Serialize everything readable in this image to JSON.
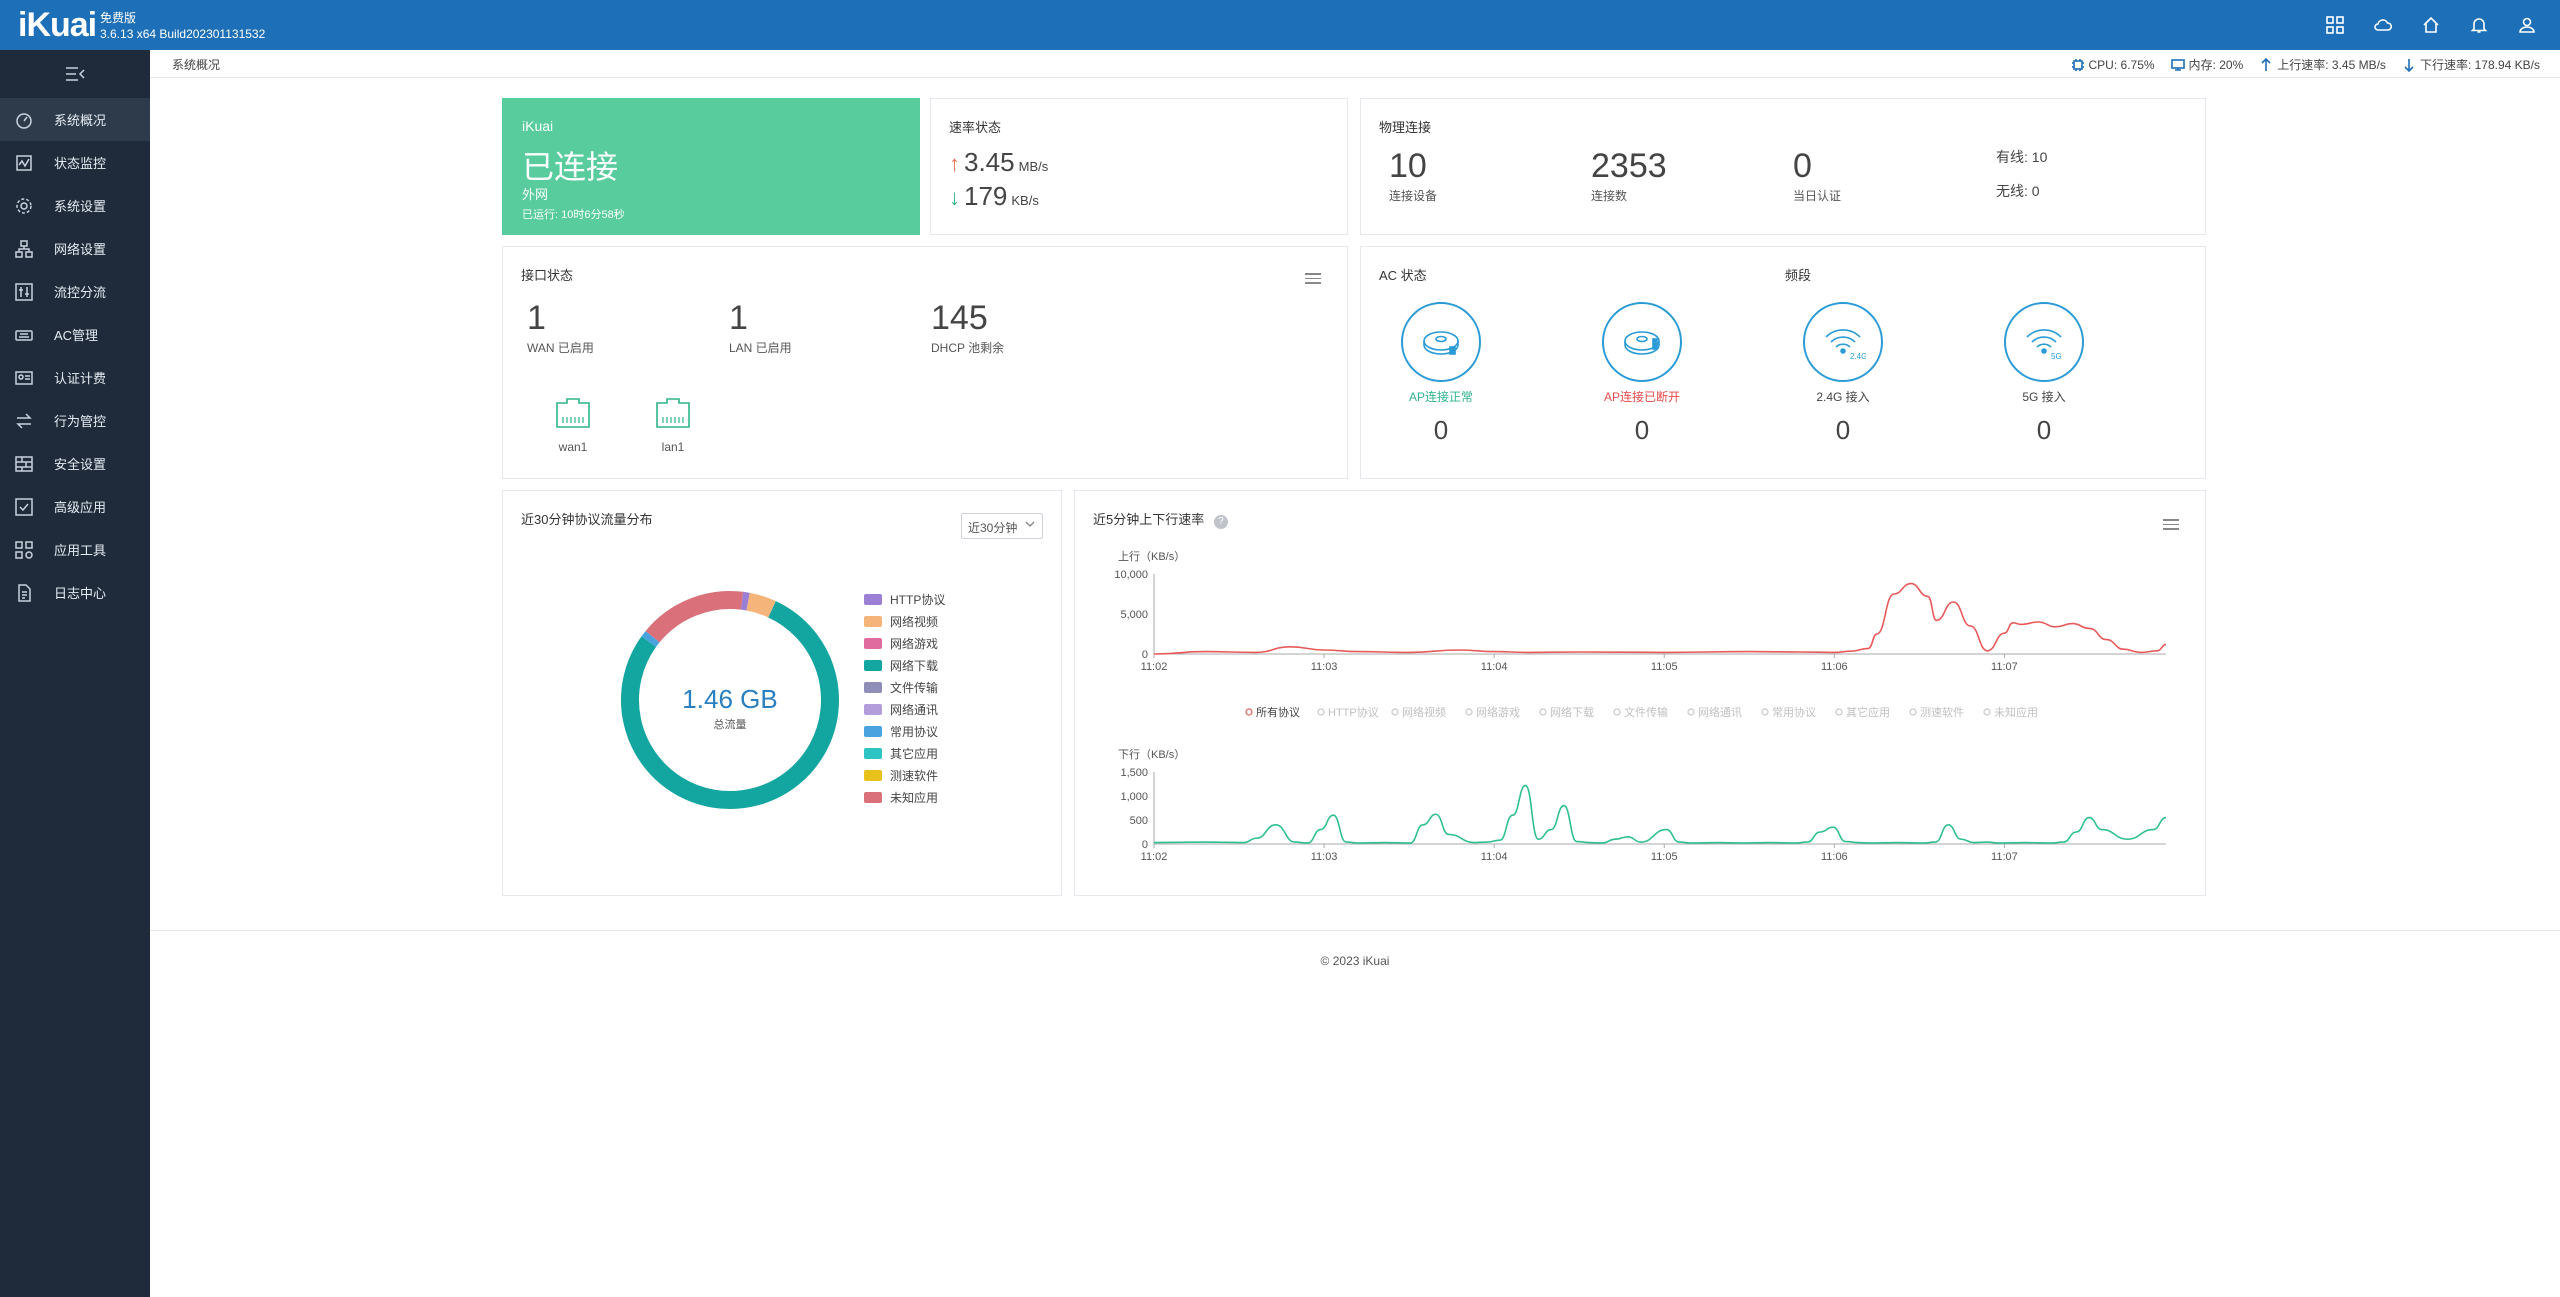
{
  "header": {
    "logo": "iKuai",
    "edition": "免费版",
    "build": "3.6.13 x64 Build202301131532",
    "icons": [
      "apps-icon",
      "cloud-icon",
      "home-icon",
      "bell-icon",
      "user-icon"
    ]
  },
  "sidebar": {
    "items": [
      {
        "label": "系统概况",
        "icon": "dashboard-icon"
      },
      {
        "label": "状态监控",
        "icon": "monitor-icon"
      },
      {
        "label": "系统设置",
        "icon": "gear-icon"
      },
      {
        "label": "网络设置",
        "icon": "network-icon"
      },
      {
        "label": "流控分流",
        "icon": "sliders-icon"
      },
      {
        "label": "AC管理",
        "icon": "router-icon"
      },
      {
        "label": "认证计费",
        "icon": "id-card-icon"
      },
      {
        "label": "行为管控",
        "icon": "arrows-icon"
      },
      {
        "label": "安全设置",
        "icon": "firewall-icon"
      },
      {
        "label": "高级应用",
        "icon": "check-box-icon"
      },
      {
        "label": "应用工具",
        "icon": "tools-icon"
      },
      {
        "label": "日志中心",
        "icon": "log-icon"
      }
    ]
  },
  "statusbar": {
    "breadcrumb": "系统概况",
    "cpu": "CPU: 6.75%",
    "mem": "内存: 20%",
    "up": "上行速率: 3.45 MB/s",
    "down": "下行速率: 178.94 KB/s"
  },
  "wan": {
    "brand": "iKuai",
    "status": "已连接",
    "type": "外网",
    "uptime": "已运行: 10时6分58秒"
  },
  "rate": {
    "title": "速率状态",
    "up_value": "3.45",
    "up_unit": "MB/s",
    "down_value": "179",
    "down_unit": "KB/s",
    "up_color": "#f07356",
    "down_color": "#2fb38a"
  },
  "physical": {
    "title": "物理连接",
    "devices": "10",
    "devices_label": "连接设备",
    "connections": "2353",
    "connections_label": "连接数",
    "auth": "0",
    "auth_label": "当日认证",
    "wired": "有线: 10",
    "wireless": "无线: 0"
  },
  "interface": {
    "title": "接口状态",
    "wan": "1",
    "wan_label": "WAN 已启用",
    "lan": "1",
    "lan_label": "LAN 已启用",
    "dhcp": "145",
    "dhcp_label": "DHCP 池剩余",
    "ports": [
      "wan1",
      "lan1"
    ]
  },
  "ac": {
    "title": "AC 状态",
    "band_title": "频段",
    "items": [
      {
        "label": "AP连接正常",
        "value": "0",
        "color": "#2fb38a"
      },
      {
        "label": "AP连接已断开",
        "value": "0",
        "color": "#e84a4a"
      },
      {
        "label": "2.4G 接入",
        "value": "0",
        "color": "#444444"
      },
      {
        "label": "5G 接入",
        "value": "0",
        "color": "#444444"
      }
    ],
    "badges": [
      "2.4G",
      "5G"
    ]
  },
  "protocol": {
    "title": "近30分钟协议流量分布",
    "select": "近30分钟",
    "total": "1.46 GB",
    "total_label": "总流量",
    "legend": [
      {
        "name": "HTTP协议",
        "color": "#9b7fd4"
      },
      {
        "name": "网络视频",
        "color": "#f5b57a"
      },
      {
        "name": "网络游戏",
        "color": "#e06c9f"
      },
      {
        "name": "网络下载",
        "color": "#13a5a0"
      },
      {
        "name": "文件传输",
        "color": "#8e8eb8"
      },
      {
        "name": "网络通讯",
        "color": "#b39ddb"
      },
      {
        "name": "常用协议",
        "color": "#4aa3df"
      },
      {
        "name": "其它应用",
        "color": "#2ec4c4"
      },
      {
        "name": "测速软件",
        "color": "#e8c21a"
      },
      {
        "name": "未知应用",
        "color": "#d9707a"
      }
    ]
  },
  "chart_data": [
    {
      "type": "pie",
      "title": "近30分钟协议流量分布",
      "categories": [
        "HTTP协议",
        "网络视频",
        "网络游戏",
        "网络下载",
        "文件传输",
        "网络通讯",
        "常用协议",
        "其它应用",
        "测速软件",
        "未知应用"
      ],
      "values": [
        1,
        4,
        0,
        78,
        0,
        0,
        1,
        0,
        0,
        16
      ],
      "unit": "%"
    },
    {
      "type": "line",
      "title": "近5分钟上下行速率",
      "ylabel": "上行（KB/s）",
      "ylim": [
        0,
        10000
      ],
      "yticks": [
        "10,000",
        "5,000",
        "0"
      ],
      "xticks": [
        "11:02",
        "11:03",
        "11:04",
        "11:05",
        "11:06",
        "11:07"
      ],
      "series": [
        {
          "name": "所有协议",
          "x": [
            0,
            0.3,
            0.6,
            0.8,
            1.0,
            1.2,
            1.5,
            1.8,
            2.0,
            2.2,
            2.5,
            3.0,
            3.5,
            3.8,
            4.0,
            4.1,
            4.2,
            4.25,
            4.35,
            4.45,
            4.55,
            4.6,
            4.7,
            4.8,
            4.9,
            5.0,
            5.05,
            5.1,
            5.2,
            5.3,
            5.4,
            5.5,
            5.6,
            5.7,
            5.8,
            5.9,
            5.95
          ],
          "y": [
            0,
            300,
            200,
            900,
            500,
            300,
            200,
            500,
            300,
            200,
            250,
            200,
            300,
            250,
            200,
            350,
            700,
            2500,
            7500,
            8800,
            7200,
            4200,
            6500,
            3500,
            400,
            2600,
            3900,
            3700,
            4000,
            3400,
            3800,
            3200,
            1800,
            600,
            200,
            400,
            1200
          ]
        }
      ]
    },
    {
      "type": "line",
      "ylabel": "下行（KB/s）",
      "ylim": [
        0,
        1500
      ],
      "yticks": [
        "1,500",
        "1,000",
        "500",
        "0"
      ],
      "xticks": [
        "11:02",
        "11:03",
        "11:04",
        "11:05",
        "11:06",
        "11:07"
      ],
      "series": [
        {
          "name": "所有协议",
          "x": [
            0,
            0.4,
            0.7,
            0.8,
            0.95,
            1.1,
            1.2,
            1.3,
            1.4,
            1.5,
            1.6,
            1.8,
            2.0,
            2.1,
            2.2,
            2.3,
            2.5,
            2.6,
            2.7,
            2.8,
            2.9,
            3.0,
            3.1,
            3.2,
            3.3,
            3.4,
            3.5,
            3.6,
            3.7,
            3.8,
            4.0,
            4.1,
            4.2,
            4.4,
            4.6,
            4.8,
            5.0,
            5.1,
            5.2,
            5.3,
            5.4,
            5.5,
            5.6,
            5.8,
            6.0,
            6.1,
            6.2,
            6.3,
            6.4,
            6.5,
            6.6,
            6.8,
            7.0,
            7.1,
            7.2,
            7.3,
            7.4,
            7.6,
            7.8,
            7.9
          ],
          "y": [
            30,
            40,
            30,
            120,
            400,
            40,
            20,
            300,
            600,
            40,
            20,
            30,
            20,
            400,
            620,
            200,
            30,
            40,
            80,
            600,
            1220,
            100,
            300,
            800,
            50,
            30,
            20,
            100,
            150,
            40,
            300,
            40,
            20,
            30,
            20,
            30,
            20,
            40,
            250,
            350,
            50,
            30,
            20,
            30,
            20,
            40,
            400,
            100,
            30,
            40,
            20,
            30,
            20,
            40,
            250,
            550,
            300,
            100,
            300,
            550
          ]
        }
      ]
    }
  ],
  "speed": {
    "title": "近5分钟上下行速率",
    "up_axis": "上行（KB/s）",
    "down_axis": "下行（KB/s）",
    "up_yticks": [
      "10,000",
      "5,000",
      "0"
    ],
    "down_yticks": [
      "1,500",
      "1,000",
      "500",
      "0"
    ],
    "xticks": [
      "11:02",
      "11:03",
      "11:04",
      "11:05",
      "11:06",
      "11:07"
    ],
    "legend": [
      "所有协议",
      "HTTP协议",
      "网络视频",
      "网络游戏",
      "网络下载",
      "文件传输",
      "网络通讯",
      "常用协议",
      "其它应用",
      "测速软件",
      "未知应用"
    ],
    "up_color": "#e85a5a",
    "down_color": "#2fc08e"
  },
  "footer": {
    "text": "© 2023 iKuai"
  }
}
